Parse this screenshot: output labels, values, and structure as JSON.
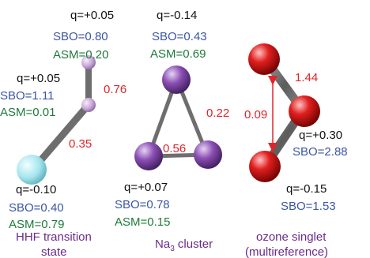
{
  "colors": {
    "charge": "#111111",
    "sbo": "#3a56a6",
    "asm": "#1e7a3a",
    "bond_value": "#e0252a",
    "caption": "#6a2b8a",
    "bond_gray": "#6e6e6e",
    "atom_h": "#c9a6d8",
    "atom_f": "#a6e6ee",
    "atom_na": "#8a4fb4",
    "atom_o": "#d81f1f"
  },
  "panels": [
    {
      "caption": [
        "HHF transition",
        "state"
      ],
      "atoms": [
        {
          "name": "h-top",
          "q": "q=+0.05",
          "sbo": "SBO=0.80",
          "asm": "ASM=0.20"
        },
        {
          "name": "h-mid",
          "q": "q=+0.05",
          "sbo": "SBO=1.11",
          "asm": "ASM=0.01"
        },
        {
          "name": "f-atom",
          "q": "q=-0.10",
          "sbo": "SBO=0.40",
          "asm": "ASM=0.79"
        }
      ],
      "bonds": [
        "0.76",
        "0.35"
      ]
    },
    {
      "caption": [
        "Na",
        "3",
        " cluster"
      ],
      "atoms": [
        {
          "name": "na-top",
          "q": "q=-0.14",
          "sbo": "SBO=0.43",
          "asm": "ASM=0.69"
        },
        {
          "name": "na-left",
          "q": "q=+0.07",
          "sbo": "SBO=0.78",
          "asm": "ASM=0.15"
        }
      ],
      "bonds": [
        "0.22",
        "0.56"
      ]
    },
    {
      "caption": [
        "ozone singlet",
        "(multireference)"
      ],
      "atoms": [
        {
          "name": "o-center",
          "q": "q=+0.30",
          "sbo": "SBO=2.88"
        },
        {
          "name": "o-bottom",
          "q": "q=-0.15",
          "sbo": "SBO=1.53"
        }
      ],
      "bonds": [
        "1.44",
        "0.09"
      ]
    }
  ]
}
